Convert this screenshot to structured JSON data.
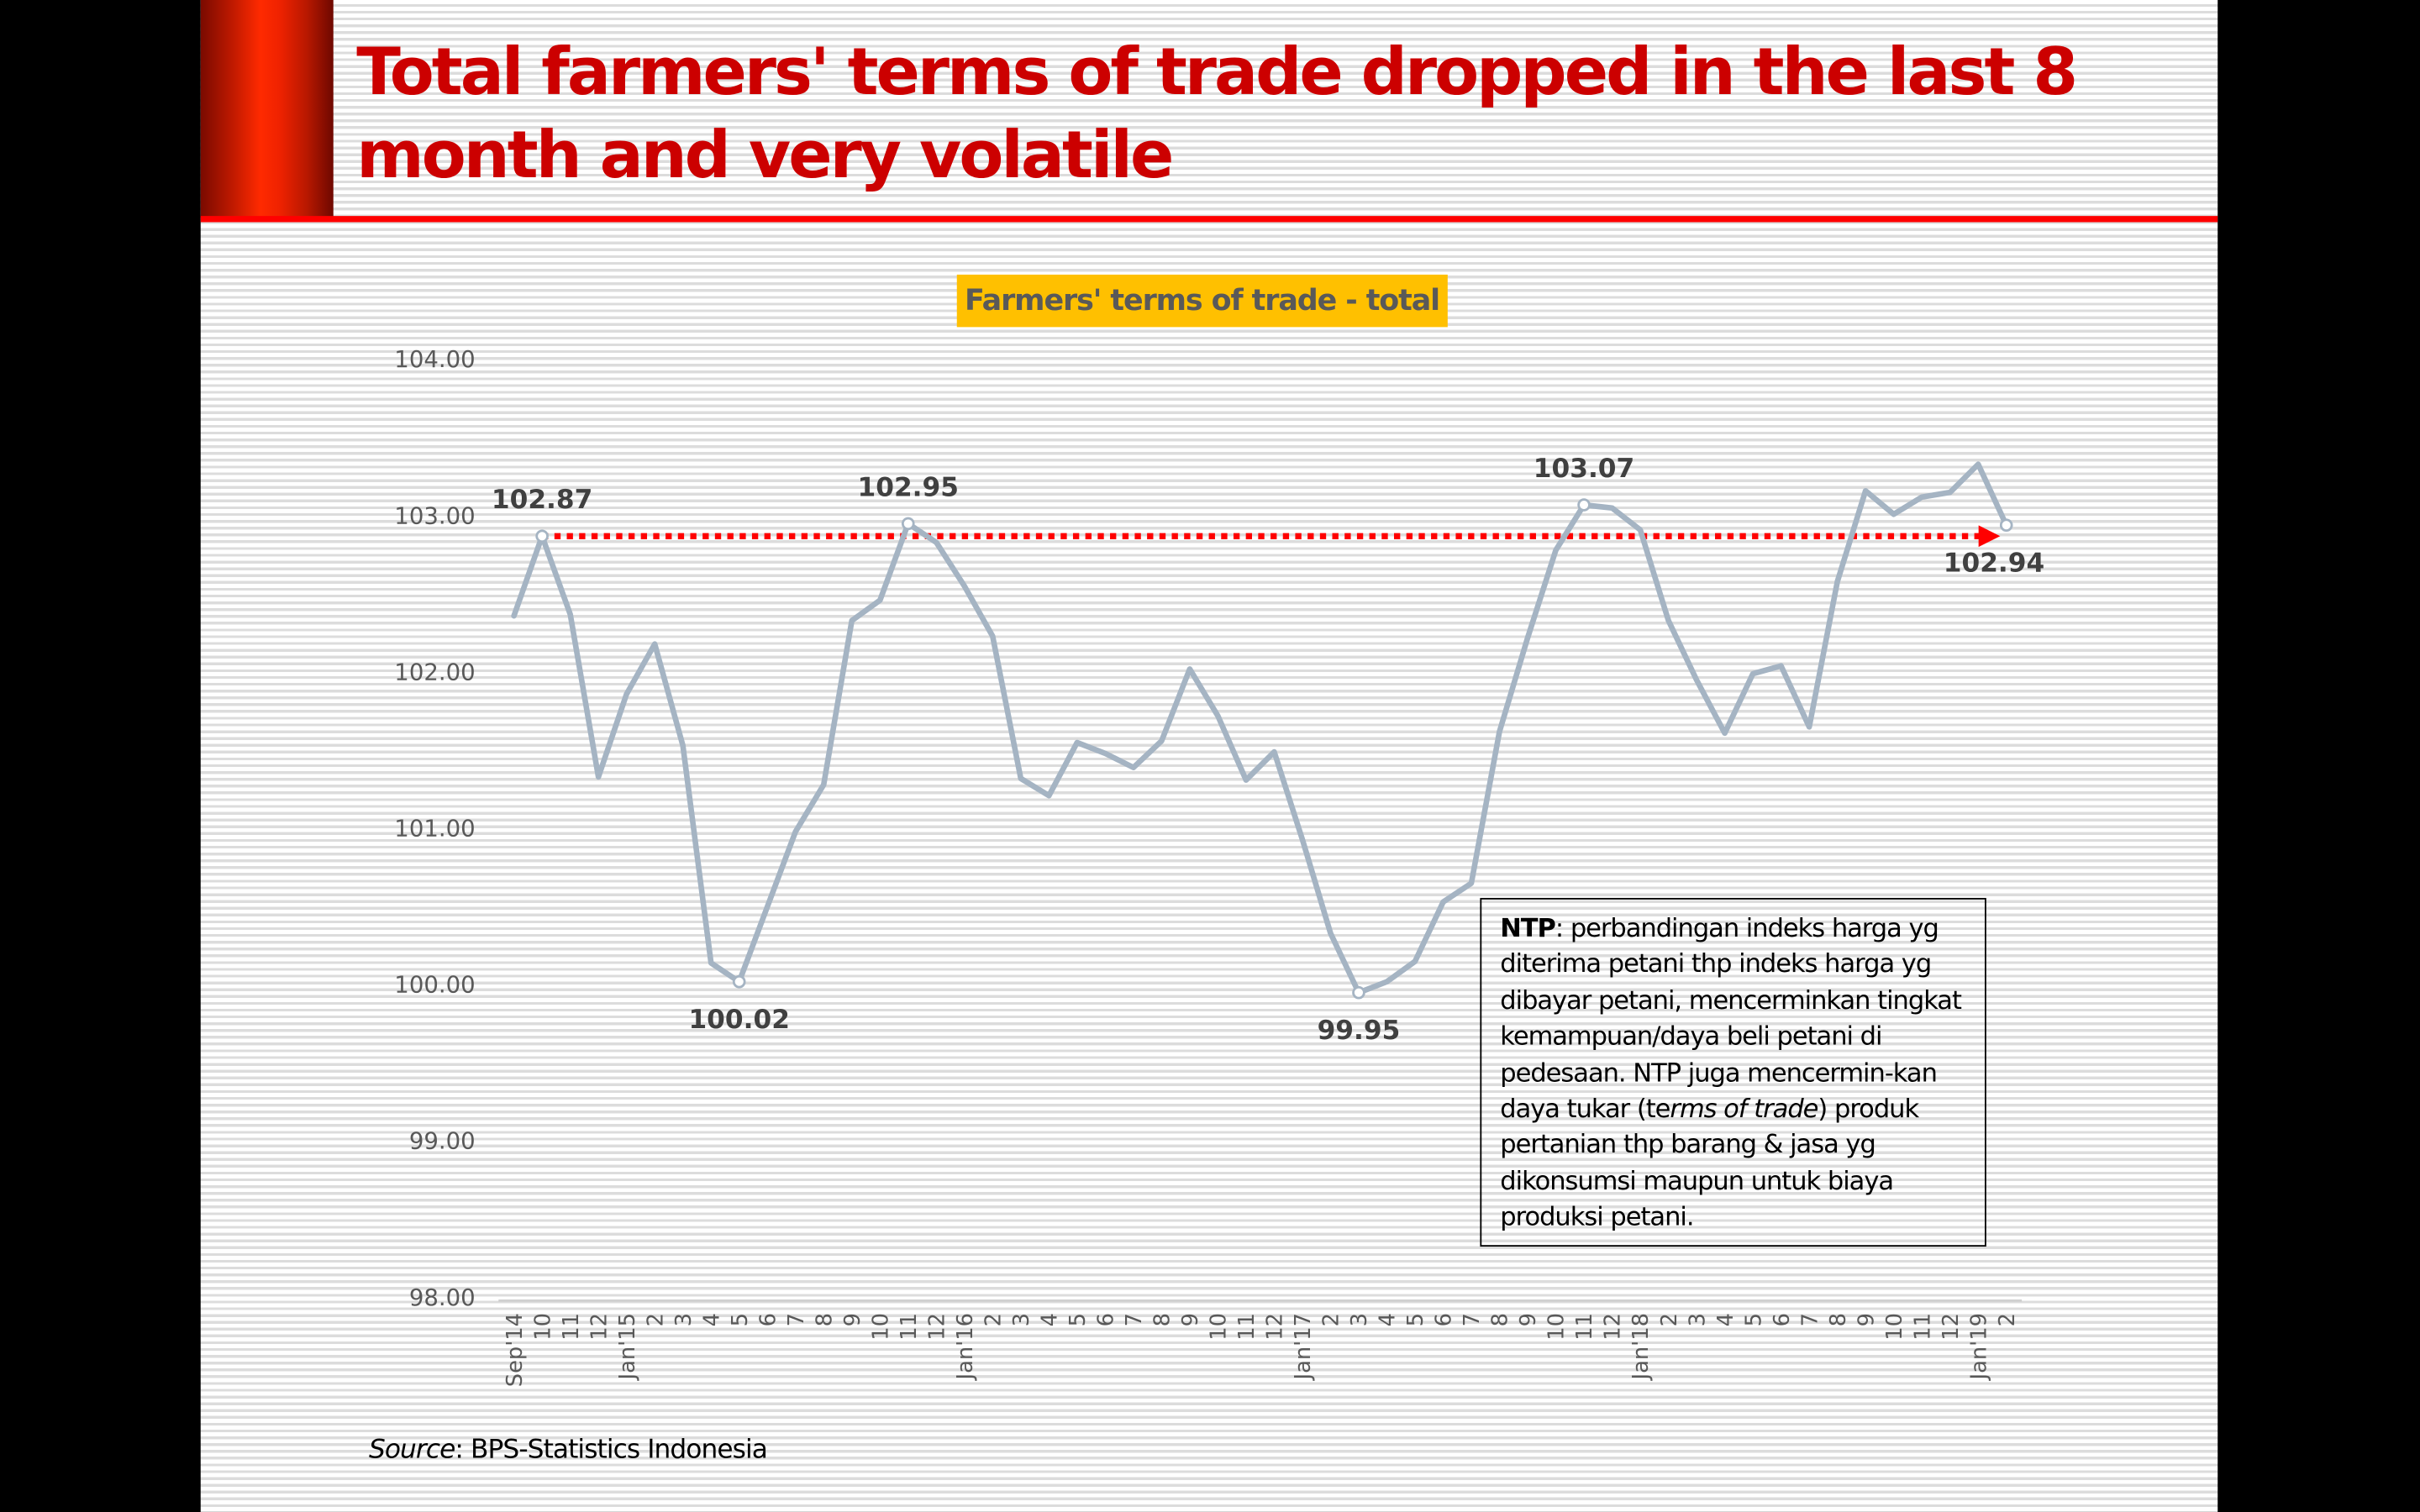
{
  "slide": {
    "title": "Total farmers' terms of trade dropped in the last 8 month and very volatile",
    "colors": {
      "title": "#cc0000",
      "rule": "#ff0000",
      "background_stripe": "#dcdcdc"
    }
  },
  "note": {
    "term": "NTP",
    "text_before_italic": ": perbandingan indeks harga yg diterima petani thp indeks harga yg dibayar petani,  mencerminkan tingkat kemampuan/daya beli petani di pedesaan. NTP juga mencermin-kan daya tukar (te",
    "italic": "rms of trade",
    "text_after_italic": ") produk pertanian  thp barang & jasa yg dikonsumsi maupun untuk biaya produksi petani."
  },
  "source": {
    "label": "Source",
    "text": ": BPS-Statistics Indonesia"
  },
  "chart_data": {
    "type": "line",
    "title": "Farmers' terms of trade - total",
    "title_bg": "#ffc000",
    "xlabel": "",
    "ylabel": "",
    "ylim": [
      98,
      104
    ],
    "yticks": [
      "98.00",
      "99.00",
      "100.00",
      "101.00",
      "102.00",
      "103.00",
      "104.00"
    ],
    "grid": false,
    "legend": "none",
    "x": [
      "Sep'14",
      "10",
      "11",
      "12",
      "Jan'15",
      "2",
      "3",
      "4",
      "5",
      "6",
      "7",
      "8",
      "9",
      "10",
      "11",
      "12",
      "Jan'16",
      "2",
      "3",
      "4",
      "5",
      "6",
      "7",
      "8",
      "9",
      "10",
      "11",
      "12",
      "Jan'17",
      "2",
      "3",
      "4",
      "5",
      "6",
      "7",
      "8",
      "9",
      "10",
      "11",
      "12",
      "Jan'18",
      "2",
      "3",
      "4",
      "5",
      "6",
      "7",
      "8",
      "9",
      "10",
      "11",
      "12",
      "Jan'19",
      "2"
    ],
    "series": [
      {
        "name": "Farmers' terms of trade - total",
        "color": "#a5b4c3",
        "values": [
          102.36,
          102.87,
          102.37,
          101.33,
          101.86,
          102.18,
          101.53,
          100.14,
          100.02,
          100.5,
          100.98,
          101.28,
          102.33,
          102.46,
          102.95,
          102.83,
          102.55,
          102.23,
          101.32,
          101.21,
          101.55,
          101.48,
          101.39,
          101.56,
          102.02,
          101.72,
          101.31,
          101.49,
          100.93,
          100.33,
          99.95,
          100.02,
          100.15,
          100.53,
          100.65,
          101.62,
          102.22,
          102.78,
          103.07,
          103.05,
          102.91,
          102.33,
          101.95,
          101.61,
          101.99,
          102.04,
          101.65,
          102.58,
          103.16,
          103.01,
          103.12,
          103.15,
          103.33,
          102.94
        ]
      }
    ],
    "annotations": [
      {
        "index": 1,
        "label": "102.87",
        "position": "above"
      },
      {
        "index": 8,
        "label": "100.02",
        "position": "below"
      },
      {
        "index": 14,
        "label": "102.95",
        "position": "above"
      },
      {
        "index": 30,
        "label": "99.95",
        "position": "below"
      },
      {
        "index": 38,
        "label": "103.07",
        "position": "above"
      },
      {
        "index": 53,
        "label": "102.94",
        "position": "below"
      }
    ],
    "reference_arrow": {
      "value": 102.87,
      "from_index": 1,
      "to_index": 53,
      "color": "#ff0000",
      "style": "dotted"
    }
  }
}
